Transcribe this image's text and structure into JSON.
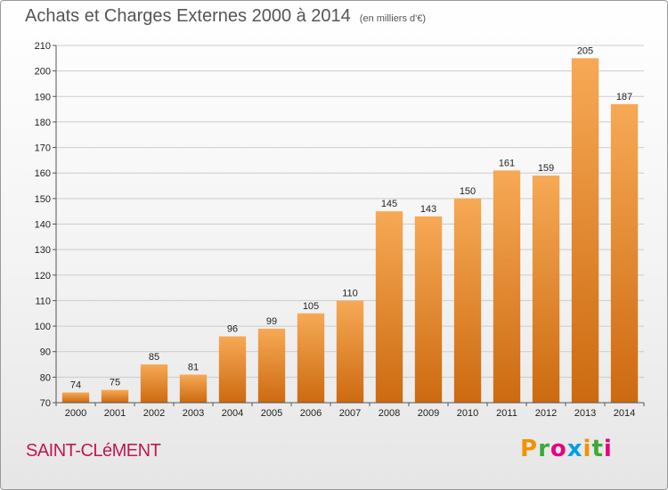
{
  "header": {
    "title": "Achats et Charges Externes 2000 à 2014",
    "unit": "(en milliers d'€)"
  },
  "footer": {
    "commune": "SAINT-CLéMENT",
    "brand": [
      "P",
      "r",
      "o",
      "x",
      "i",
      "t",
      "i"
    ],
    "brand_colors": [
      "#f39200",
      "#3aaa35",
      "#e6007e",
      "#009fe3",
      "#f39200",
      "#3aaa35",
      "#e6007e"
    ]
  },
  "colors": {
    "bar_light": "#f7a955",
    "bar_dark": "#cc6a10",
    "grid": "#cccccc",
    "axis": "#555555"
  },
  "chart_data": {
    "type": "bar",
    "title": "Achats et Charges Externes 2000 à 2014",
    "subtitle": "(en milliers d'€)",
    "categories": [
      "2000",
      "2001",
      "2002",
      "2003",
      "2004",
      "2005",
      "2006",
      "2007",
      "2008",
      "2009",
      "2010",
      "2011",
      "2012",
      "2013",
      "2014"
    ],
    "values": [
      74,
      75,
      85,
      81,
      96,
      99,
      105,
      110,
      145,
      143,
      150,
      161,
      159,
      205,
      187
    ],
    "ylim": [
      70,
      210
    ],
    "yticks": [
      70,
      80,
      90,
      100,
      110,
      120,
      130,
      140,
      150,
      160,
      170,
      180,
      190,
      200,
      210
    ],
    "grid": true,
    "xlabel": "",
    "ylabel": ""
  }
}
